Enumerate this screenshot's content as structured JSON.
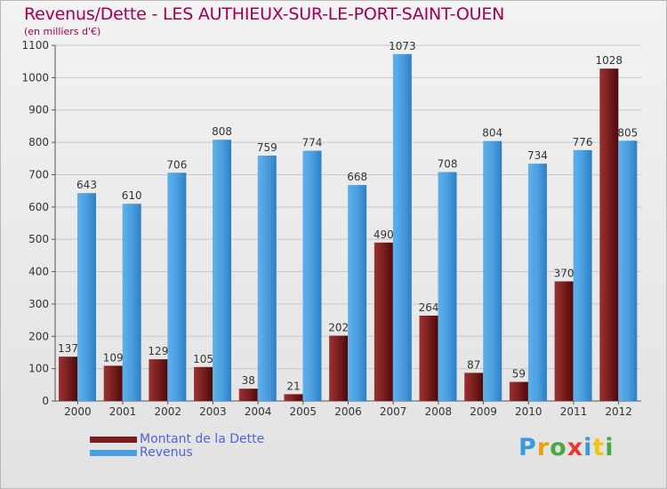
{
  "title": "Revenus/Dette - LES AUTHIEUX-SUR-LE-PORT-SAINT-OUEN",
  "subtitle": "(en milliers d'€)",
  "logo": {
    "letters": [
      "P",
      "r",
      "o",
      "x",
      "i",
      "t",
      "i"
    ],
    "colors": [
      "#3a9ad9",
      "#f29c11",
      "#49a942",
      "#e63b2e",
      "#3a9ad9",
      "#f2c511",
      "#49a942"
    ]
  },
  "chart_data": {
    "type": "bar",
    "categories": [
      "2000",
      "2001",
      "2002",
      "2003",
      "2004",
      "2005",
      "2006",
      "2007",
      "2008",
      "2009",
      "2010",
      "2011",
      "2012"
    ],
    "series": [
      {
        "name": "Montant de la Dette",
        "color": "#7a1e1e",
        "values": [
          137,
          109,
          129,
          105,
          38,
          21,
          202,
          490,
          264,
          87,
          59,
          370,
          1028
        ]
      },
      {
        "name": "Revenus",
        "color": "#4a9fe0",
        "values": [
          643,
          610,
          706,
          808,
          759,
          774,
          668,
          1073,
          708,
          804,
          734,
          776,
          805
        ]
      }
    ],
    "ylim": [
      0,
      1100
    ],
    "yticks": [
      0,
      100,
      200,
      300,
      400,
      500,
      600,
      700,
      800,
      900,
      1000,
      1100
    ],
    "grid": true,
    "legend_position": "bottom-left"
  }
}
